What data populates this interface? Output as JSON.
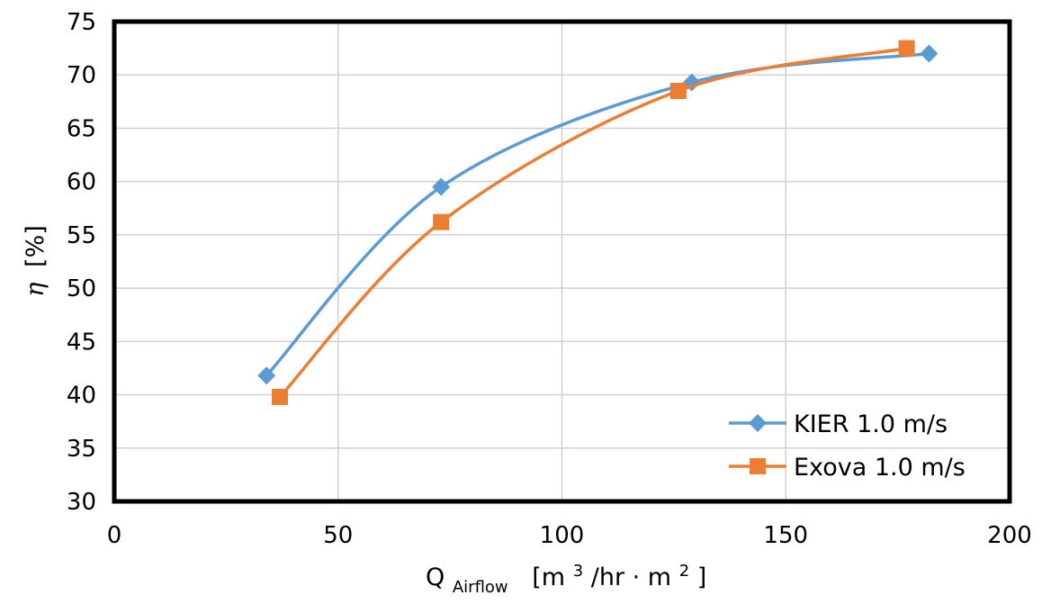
{
  "chart_data": {
    "type": "line",
    "title": "",
    "xlim": [
      0,
      200
    ],
    "ylim": [
      30,
      75
    ],
    "x_ticks": [
      0,
      50,
      100,
      150,
      200
    ],
    "y_ticks": [
      30,
      35,
      40,
      45,
      50,
      55,
      60,
      65,
      70,
      75
    ],
    "x_tick_labels": [
      "0",
      "50",
      "100",
      "150",
      "200"
    ],
    "y_tick_labels": [
      "30",
      "35",
      "40",
      "45",
      "50",
      "55",
      "60",
      "65",
      "70",
      "75"
    ],
    "grid": true,
    "legend_position": "bottom-right",
    "xlabel": {
      "main": "Q",
      "subscript": "Airflow",
      "units_open": "[m",
      "units_sup1": "3",
      "units_mid": "/hr · m",
      "units_sup2": "2",
      "units_close": "]"
    },
    "ylabel": {
      "symbol": "η",
      "units": "[%]"
    },
    "series": [
      {
        "name": "KIER 1.0 m/s",
        "color": "#5b9bd5",
        "marker": "diamond",
        "x": [
          34,
          73,
          129,
          182
        ],
        "y": [
          41.8,
          59.5,
          69.3,
          72.0
        ]
      },
      {
        "name": "Exova 1.0 m/s",
        "color": "#ed7d31",
        "marker": "square",
        "x": [
          37,
          73,
          126,
          177
        ],
        "y": [
          39.8,
          56.2,
          68.5,
          72.5
        ]
      }
    ]
  }
}
